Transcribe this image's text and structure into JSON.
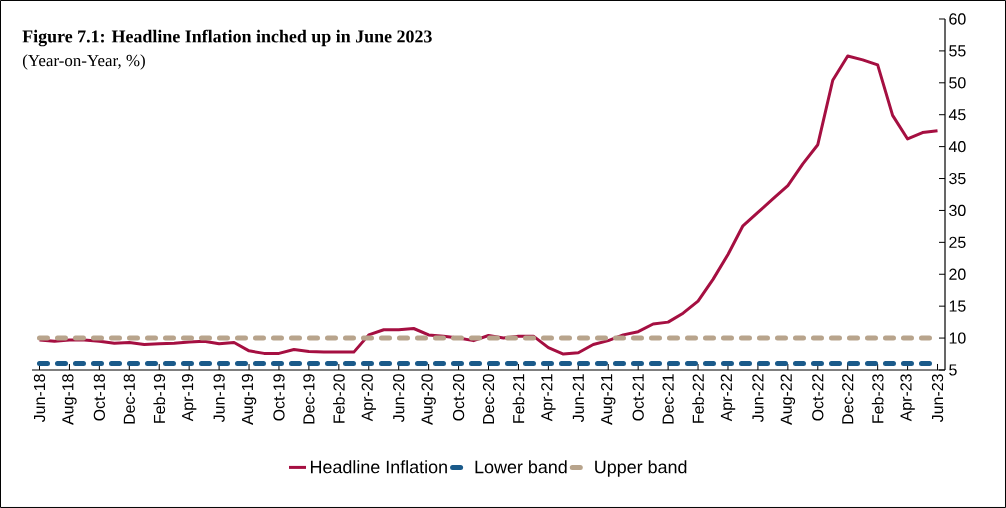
{
  "chart_data": {
    "type": "line",
    "title": "Figure 7.1: Headline Inflation inched up in June 2023",
    "subtitle": "(Year-on-Year, %)",
    "categories": [
      "Jun-18",
      null,
      "Aug-18",
      null,
      "Oct-18",
      null,
      "Dec-18",
      null,
      "Feb-19",
      null,
      "Apr-19",
      null,
      "Jun-19",
      null,
      "Aug-19",
      null,
      "Oct-19",
      null,
      "Dec-19",
      null,
      "Feb-20",
      null,
      "Apr-20",
      null,
      "Jun-20",
      null,
      "Aug-20",
      null,
      "Oct-20",
      null,
      "Dec-20",
      null,
      "Feb-21",
      null,
      "Apr-21",
      null,
      "Jun-21",
      null,
      "Aug-21",
      null,
      "Oct-21",
      null,
      "Dec-21",
      null,
      "Feb-22",
      null,
      "Apr-22",
      null,
      "Jun-22",
      null,
      "Aug-22",
      null,
      "Oct-22",
      null,
      "Dec-22",
      null,
      "Feb-23",
      null,
      "Apr-23",
      null,
      "Jun-23"
    ],
    "series": [
      {
        "name": "Headline Inflation",
        "color": "#a50f41",
        "line_style": "solid",
        "values": [
          9.7,
          9.5,
          9.7,
          9.7,
          9.5,
          9.2,
          9.3,
          9.0,
          9.1,
          9.2,
          9.4,
          9.5,
          9.1,
          9.3,
          8.0,
          7.6,
          7.6,
          8.2,
          7.9,
          7.8,
          7.8,
          7.8,
          10.5,
          11.3,
          11.3,
          11.5,
          10.5,
          10.3,
          10.0,
          9.6,
          10.4,
          10.0,
          10.3,
          10.3,
          8.5,
          7.5,
          7.7,
          9.0,
          9.6,
          10.5,
          11.0,
          12.2,
          12.5,
          13.9,
          15.8,
          19.2,
          23.1,
          27.6,
          29.7,
          31.8,
          33.9,
          37.3,
          40.3,
          50.4,
          54.2,
          53.6,
          52.8,
          44.9,
          41.2,
          42.2,
          42.5
        ]
      },
      {
        "name": "Lower band",
        "color": "#1a5a8a",
        "line_style": "dashed",
        "values": [
          6,
          6,
          6,
          6,
          6,
          6,
          6,
          6,
          6,
          6,
          6,
          6,
          6,
          6,
          6,
          6,
          6,
          6,
          6,
          6,
          6,
          6,
          6,
          6,
          6,
          6,
          6,
          6,
          6,
          6,
          6,
          6,
          6,
          6,
          6,
          6,
          6,
          6,
          6,
          6,
          6,
          6,
          6,
          6,
          6,
          6,
          6,
          6,
          6,
          6,
          6,
          6,
          6,
          6,
          6,
          6,
          6,
          6,
          6,
          6,
          6
        ]
      },
      {
        "name": "Upper band",
        "color": "#b8a48c",
        "line_style": "dashed",
        "values": [
          10,
          10,
          10,
          10,
          10,
          10,
          10,
          10,
          10,
          10,
          10,
          10,
          10,
          10,
          10,
          10,
          10,
          10,
          10,
          10,
          10,
          10,
          10,
          10,
          10,
          10,
          10,
          10,
          10,
          10,
          10,
          10,
          10,
          10,
          10,
          10,
          10,
          10,
          10,
          10,
          10,
          10,
          10,
          10,
          10,
          10,
          10,
          10,
          10,
          10,
          10,
          10,
          10,
          10,
          10,
          10,
          10,
          10,
          10,
          10,
          10
        ]
      }
    ],
    "ylim": [
      5,
      60
    ],
    "yticks": [
      5,
      10,
      15,
      20,
      25,
      30,
      35,
      40,
      45,
      50,
      55,
      60
    ],
    "legend": "bottom"
  }
}
